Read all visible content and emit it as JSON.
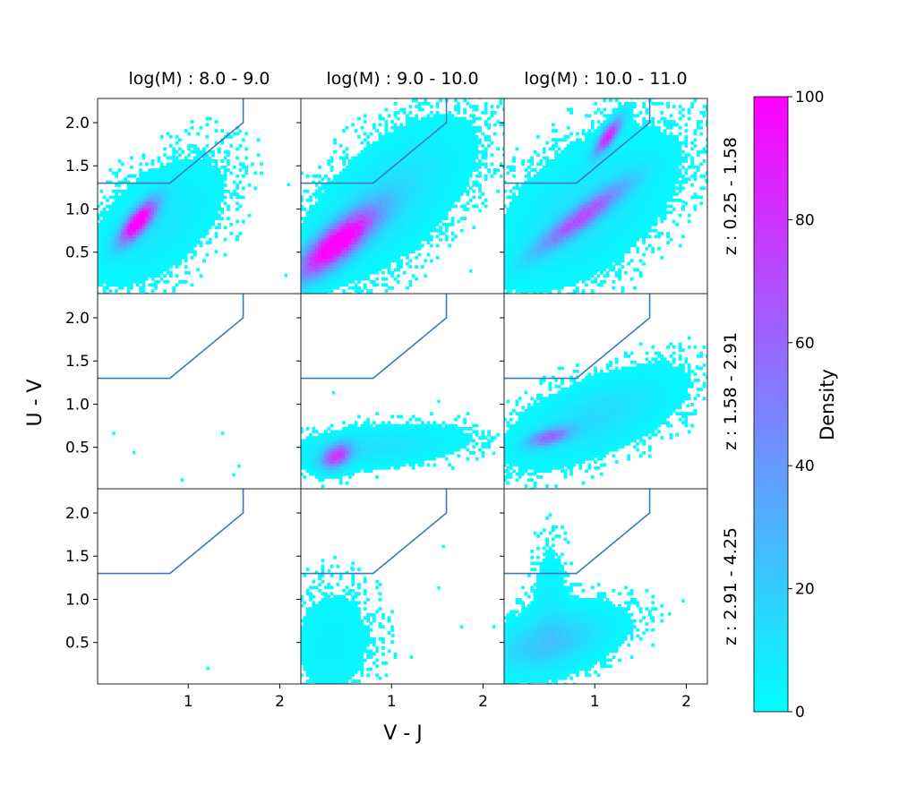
{
  "chart_data": {
    "type": "heatmap",
    "col_titles": [
      "log(M) : 8.0 - 9.0",
      "log(M) : 9.0 - 10.0",
      "log(M) : 10.0 - 11.0"
    ],
    "row_titles": [
      "z : 0.25 - 1.58",
      "z : 1.58 - 2.91",
      "z : 2.91 - 4.25"
    ],
    "xlabel": "V - J",
    "ylabel": "U - V",
    "xlim": [
      0.01,
      2.23
    ],
    "ylim": [
      0.02,
      2.28
    ],
    "xticks": [
      1,
      2
    ],
    "xtick_labels": [
      "1",
      "2"
    ],
    "yticks": [
      0.5,
      1.0,
      1.5,
      2.0
    ],
    "ytick_labels": [
      "0.5",
      "1.0",
      "1.5",
      "2.0"
    ],
    "bin_size": [
      0.033,
      0.035
    ],
    "colorbar": {
      "label": "Density",
      "colormap": "cool",
      "min": 0,
      "max": 100,
      "ticks": [
        0,
        20,
        40,
        60,
        80,
        100
      ],
      "tick_labels": [
        "0",
        "20",
        "40",
        "60",
        "80",
        "100"
      ]
    },
    "selection_line": {
      "x": [
        0.0,
        0.8,
        1.6,
        1.6
      ],
      "y": [
        1.3,
        1.3,
        2.0,
        2.3
      ],
      "color": "#3a7bbf"
    },
    "panels": [
      {
        "row": 0,
        "col": 0,
        "components": [
          {
            "cx": 0.45,
            "cy": 0.85,
            "slope": 1.3,
            "s_major": 0.2,
            "s_minor": 0.07,
            "peak": 110
          },
          {
            "cx": 0.65,
            "cy": 0.85,
            "slope": 1.0,
            "s_major": 0.55,
            "s_minor": 0.3,
            "peak": 10
          }
        ],
        "points": [
          [
            2.05,
            0.25
          ],
          [
            2.08,
            1.3
          ],
          [
            1.55,
            1.92
          ]
        ]
      },
      {
        "row": 0,
        "col": 1,
        "components": [
          {
            "cx": 0.4,
            "cy": 0.6,
            "slope": 0.9,
            "s_major": 0.38,
            "s_minor": 0.12,
            "peak": 110
          },
          {
            "cx": 0.95,
            "cy": 1.1,
            "slope": 1.0,
            "s_major": 0.7,
            "s_minor": 0.33,
            "peak": 13
          }
        ],
        "points": [
          [
            1.85,
            0.3
          ],
          [
            1.95,
            1.0
          ],
          [
            2.05,
            1.45
          ]
        ]
      },
      {
        "row": 0,
        "col": 2,
        "components": [
          {
            "cx": 1.15,
            "cy": 1.85,
            "slope": 1.5,
            "s_major": 0.16,
            "s_minor": 0.05,
            "peak": 85
          },
          {
            "cx": 0.85,
            "cy": 0.9,
            "slope": 0.8,
            "s_major": 0.42,
            "s_minor": 0.08,
            "peak": 60
          },
          {
            "cx": 0.9,
            "cy": 1.0,
            "slope": 0.9,
            "s_major": 0.7,
            "s_minor": 0.38,
            "peak": 12
          }
        ],
        "points": [
          [
            2.2,
            1.35
          ],
          [
            1.95,
            1.1
          ]
        ]
      },
      {
        "row": 1,
        "col": 0,
        "components": [],
        "points": [
          [
            0.17,
            0.68
          ],
          [
            0.39,
            0.46
          ],
          [
            1.36,
            0.68
          ],
          [
            0.92,
            0.14
          ],
          [
            1.48,
            0.2
          ],
          [
            1.54,
            0.3
          ]
        ]
      },
      {
        "row": 1,
        "col": 1,
        "components": [
          {
            "cx": 0.4,
            "cy": 0.4,
            "slope": 0.8,
            "s_major": 0.12,
            "s_minor": 0.08,
            "peak": 75
          },
          {
            "cx": 0.8,
            "cy": 0.5,
            "slope": 0.1,
            "s_major": 0.6,
            "s_minor": 0.14,
            "peak": 12
          }
        ],
        "points": [
          [
            1.5,
            1.05
          ],
          [
            0.35,
            1.15
          ],
          [
            2.1,
            0.45
          ]
        ]
      },
      {
        "row": 1,
        "col": 2,
        "components": [
          {
            "cx": 0.5,
            "cy": 0.62,
            "slope": 0.3,
            "s_major": 0.16,
            "s_minor": 0.06,
            "peak": 55
          },
          {
            "cx": 1.0,
            "cy": 0.85,
            "slope": 0.45,
            "s_major": 0.6,
            "s_minor": 0.24,
            "peak": 14
          }
        ],
        "points": [
          [
            2.1,
            1.45
          ],
          [
            2.0,
            1.0
          ]
        ]
      },
      {
        "row": 2,
        "col": 0,
        "components": [],
        "points": [
          [
            1.2,
            0.22
          ]
        ]
      },
      {
        "row": 2,
        "col": 1,
        "components": [
          {
            "cx": 0.35,
            "cy": 0.5,
            "slope": 20,
            "s_major": 0.4,
            "s_minor": 0.28,
            "peak": 6
          }
        ],
        "points": [
          [
            1.55,
            1.63
          ],
          [
            1.5,
            1.15
          ],
          [
            1.75,
            0.7
          ],
          [
            2.1,
            0.7
          ],
          [
            1.0,
            0.6
          ],
          [
            1.2,
            0.35
          ],
          [
            0.3,
            1.35
          ],
          [
            0.55,
            1.38
          ]
        ]
      },
      {
        "row": 2,
        "col": 2,
        "components": [
          {
            "cx": 0.5,
            "cy": 0.5,
            "slope": 0.3,
            "s_major": 0.45,
            "s_minor": 0.2,
            "peak": 22
          },
          {
            "cx": 0.5,
            "cy": 1.0,
            "slope": 30,
            "s_major": 0.4,
            "s_minor": 0.12,
            "peak": 6
          }
        ],
        "points": [
          [
            1.95,
            1.0
          ],
          [
            1.8,
            0.85
          ],
          [
            1.6,
            0.8
          ]
        ]
      }
    ]
  }
}
